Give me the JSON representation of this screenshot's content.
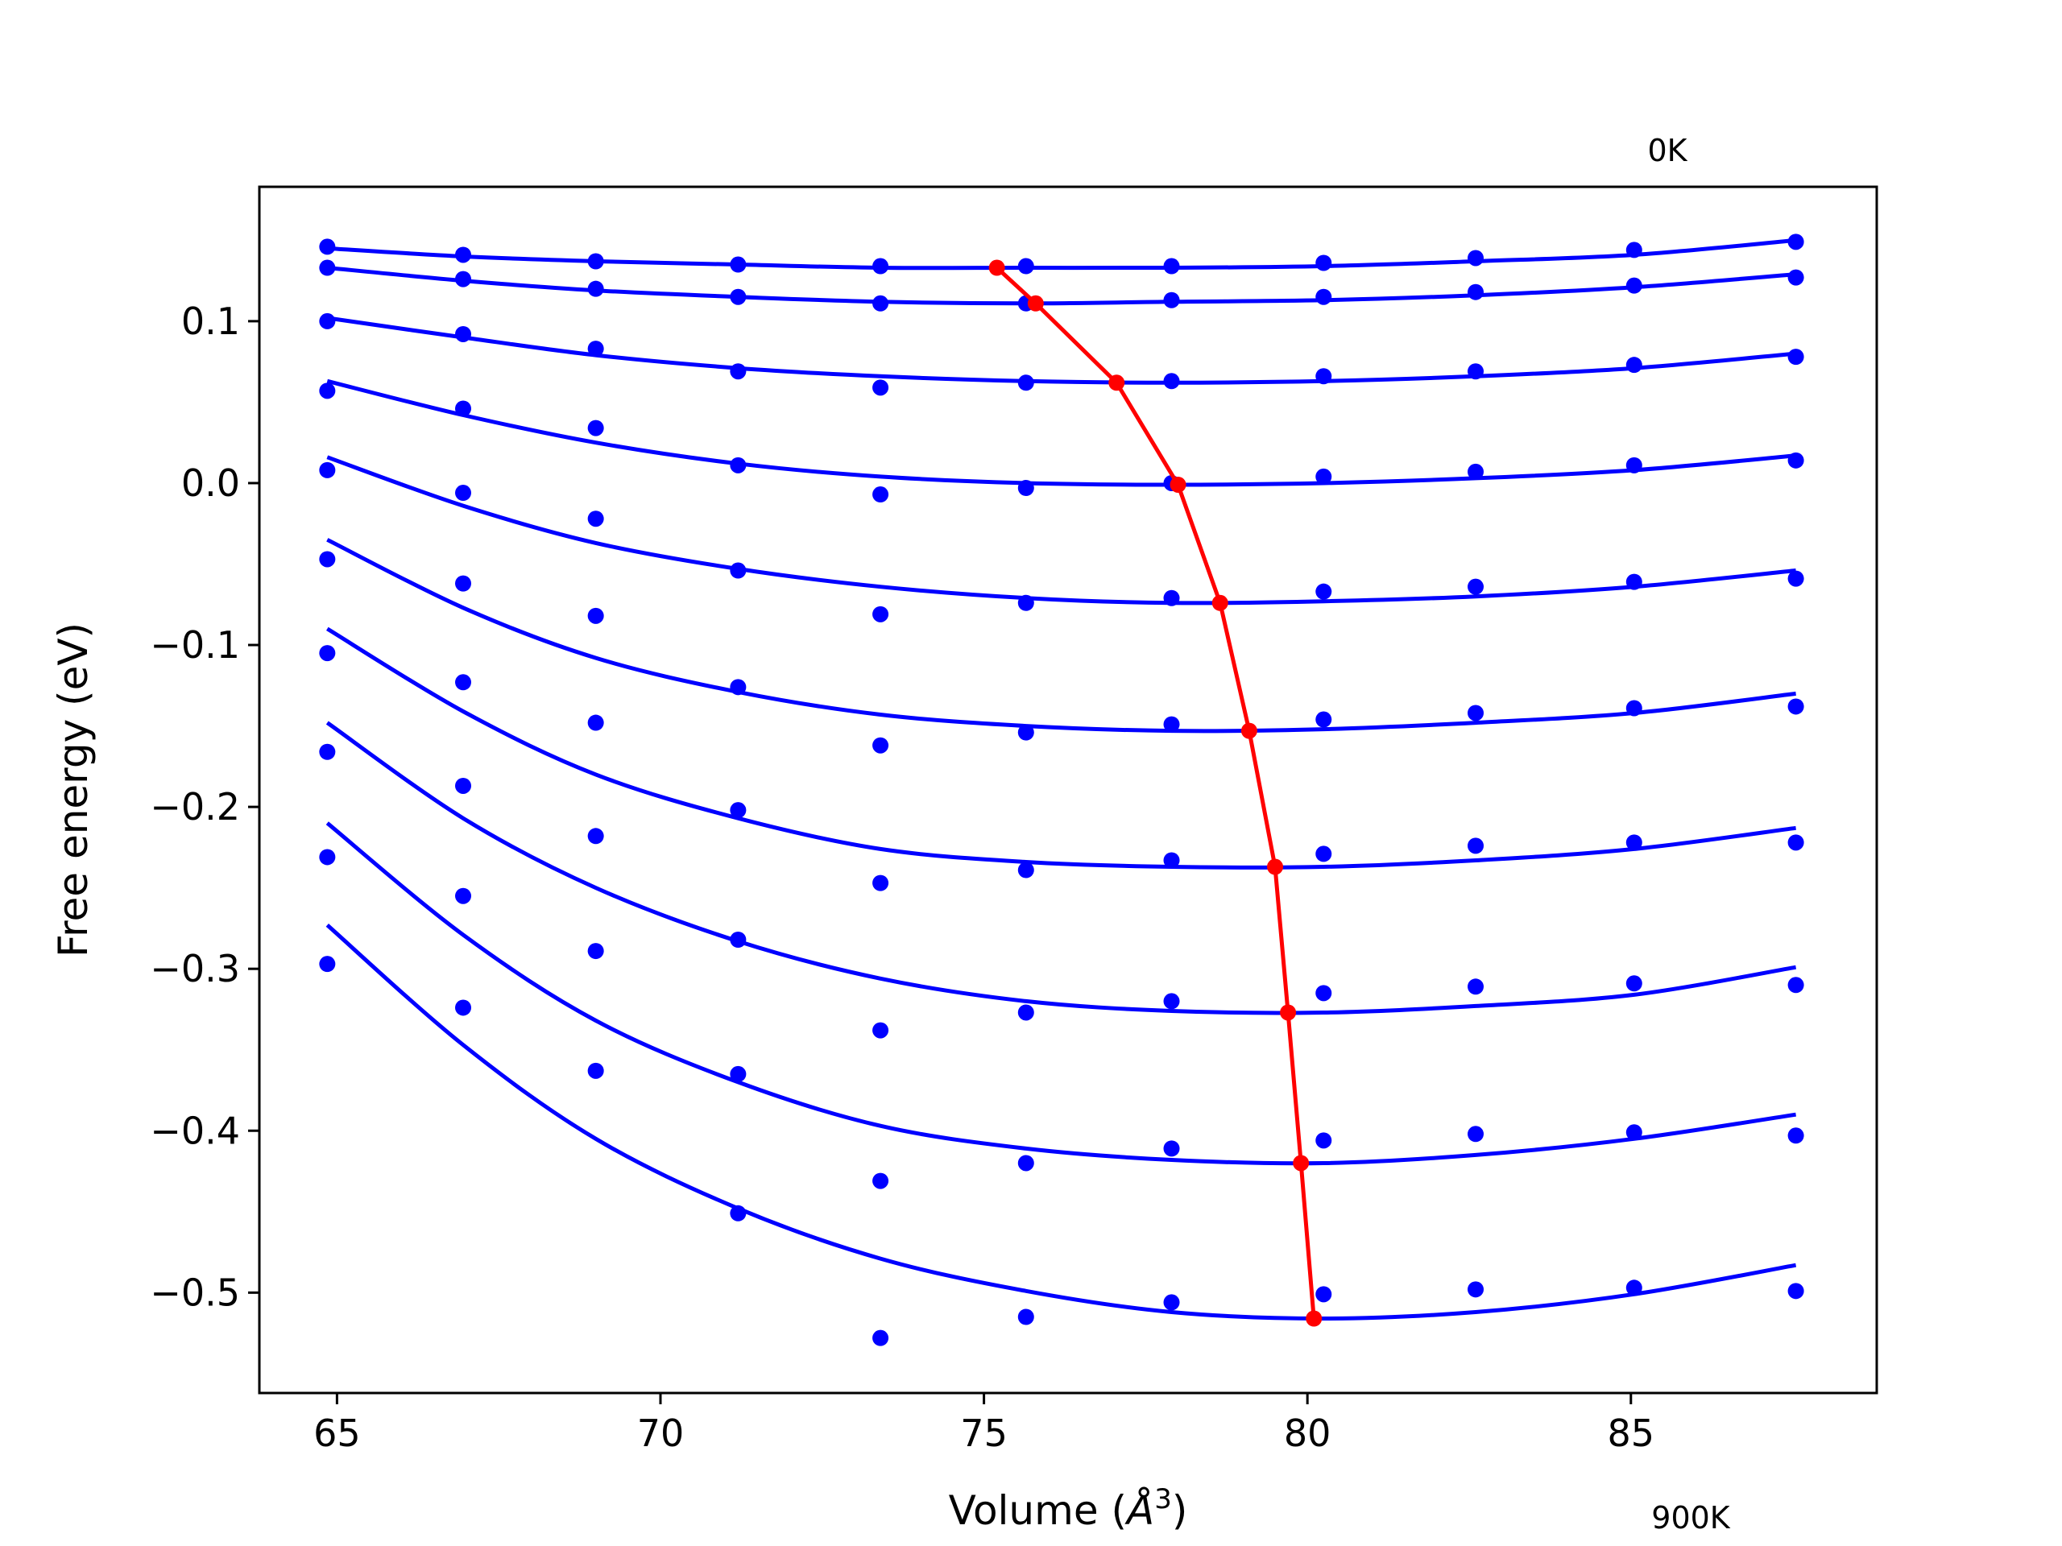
{
  "chart_data": {
    "type": "line",
    "xlabel": "Volume (",
    "xlabel_math": "Å",
    "xlabel_sup": "3",
    "xlabel_end": ")",
    "ylabel": "Free energy (eV)",
    "xlim": [
      63.8,
      88.8
    ],
    "ylim": [
      -0.562,
      0.183
    ],
    "xticks": [
      {
        "value": 65,
        "label": "65"
      },
      {
        "value": 70,
        "label": "70"
      },
      {
        "value": 75,
        "label": "75"
      },
      {
        "value": 80,
        "label": "80"
      },
      {
        "value": 85,
        "label": "85"
      }
    ],
    "yticks": [
      {
        "value": 0.1,
        "label": "0.1"
      },
      {
        "value": 0.0,
        "label": "0.0"
      },
      {
        "value": -0.1,
        "label": "−0.1"
      },
      {
        "value": -0.2,
        "label": "−0.2"
      },
      {
        "value": -0.3,
        "label": "−0.3"
      },
      {
        "value": -0.4,
        "label": "−0.4"
      },
      {
        "value": -0.5,
        "label": "−0.5"
      }
    ],
    "annotations": [
      {
        "text": "0K",
        "anchor": "top"
      },
      {
        "text": "900K",
        "anchor": "bottom"
      }
    ],
    "grid": false,
    "data_color": "#0000ff",
    "min_color": "#ff0000",
    "x": [
      64.85,
      66.95,
      69.0,
      71.2,
      73.4,
      75.65,
      77.9,
      80.25,
      82.6,
      85.05,
      87.55
    ],
    "curves": [
      {
        "values": [
          0.146,
          0.141,
          0.137,
          0.135,
          0.134,
          0.134,
          0.134,
          0.136,
          0.139,
          0.144,
          0.149
        ],
        "fit": [
          0.145,
          0.14,
          0.137,
          0.135,
          0.133,
          0.133,
          0.133,
          0.134,
          0.137,
          0.141,
          0.15
        ],
        "min": [
          75.2,
          0.133
        ]
      },
      {
        "values": [
          0.133,
          0.126,
          0.12,
          0.115,
          0.111,
          0.111,
          0.113,
          0.115,
          0.118,
          0.122,
          0.127
        ],
        "fit": [
          0.133,
          0.125,
          0.119,
          0.115,
          0.112,
          0.111,
          0.112,
          0.113,
          0.116,
          0.121,
          0.129
        ],
        "min": [
          75.8,
          0.111
        ]
      },
      {
        "values": [
          0.1,
          0.092,
          0.083,
          0.069,
          0.059,
          0.062,
          0.063,
          0.066,
          0.069,
          0.073,
          0.078
        ],
        "fit": [
          0.102,
          0.09,
          0.079,
          0.071,
          0.066,
          0.063,
          0.062,
          0.063,
          0.066,
          0.071,
          0.08
        ],
        "min": [
          77.05,
          0.062
        ]
      },
      {
        "values": [
          0.057,
          0.046,
          0.034,
          0.011,
          -0.007,
          -0.003,
          0.0,
          0.004,
          0.007,
          0.011,
          0.014
        ],
        "fit": [
          0.063,
          0.042,
          0.025,
          0.012,
          0.004,
          0.0,
          -0.001,
          0.0,
          0.003,
          0.008,
          0.017
        ],
        "min": [
          78.0,
          -0.001
        ]
      },
      {
        "values": [
          0.008,
          -0.006,
          -0.022,
          -0.054,
          -0.081,
          -0.074,
          -0.071,
          -0.067,
          -0.064,
          -0.061,
          -0.059
        ],
        "fit": [
          0.016,
          -0.014,
          -0.037,
          -0.053,
          -0.064,
          -0.071,
          -0.074,
          -0.073,
          -0.07,
          -0.064,
          -0.054
        ],
        "min": [
          78.65,
          -0.074
        ]
      },
      {
        "values": [
          -0.047,
          -0.062,
          -0.082,
          -0.126,
          -0.162,
          -0.154,
          -0.149,
          -0.146,
          -0.142,
          -0.139,
          -0.138
        ],
        "fit": [
          -0.035,
          -0.077,
          -0.108,
          -0.129,
          -0.143,
          -0.15,
          -0.153,
          -0.152,
          -0.148,
          -0.142,
          -0.13
        ],
        "min": [
          79.1,
          -0.153
        ]
      },
      {
        "values": [
          -0.105,
          -0.123,
          -0.148,
          -0.202,
          -0.247,
          -0.239,
          -0.233,
          -0.229,
          -0.224,
          -0.222,
          -0.222
        ],
        "fit": [
          -0.09,
          -0.141,
          -0.18,
          -0.207,
          -0.226,
          -0.234,
          -0.237,
          -0.237,
          -0.233,
          -0.226,
          -0.213
        ],
        "min": [
          79.5,
          -0.237
        ]
      },
      {
        "values": [
          -0.166,
          -0.187,
          -0.218,
          -0.282,
          -0.338,
          -0.327,
          -0.32,
          -0.315,
          -0.311,
          -0.309,
          -0.31
        ],
        "fit": [
          -0.148,
          -0.207,
          -0.25,
          -0.283,
          -0.306,
          -0.32,
          -0.326,
          -0.327,
          -0.323,
          -0.316,
          -0.299
        ],
        "min": [
          79.7,
          -0.327
        ]
      },
      {
        "values": [
          -0.231,
          -0.255,
          -0.289,
          -0.365,
          -0.431,
          -0.42,
          -0.411,
          -0.406,
          -0.402,
          -0.401,
          -0.403
        ],
        "fit": [
          -0.21,
          -0.279,
          -0.332,
          -0.37,
          -0.397,
          -0.411,
          -0.418,
          -0.42,
          -0.415,
          -0.405,
          -0.39
        ],
        "min": [
          79.9,
          -0.42
        ]
      },
      {
        "values": [
          -0.297,
          -0.324,
          -0.363,
          -0.451,
          -0.528,
          -0.515,
          -0.506,
          -0.501,
          -0.498,
          -0.497,
          -0.499
        ],
        "fit": [
          -0.273,
          -0.347,
          -0.405,
          -0.448,
          -0.479,
          -0.499,
          -0.512,
          -0.516,
          -0.512,
          -0.501,
          -0.483
        ],
        "min": [
          80.1,
          -0.516
        ]
      }
    ]
  }
}
